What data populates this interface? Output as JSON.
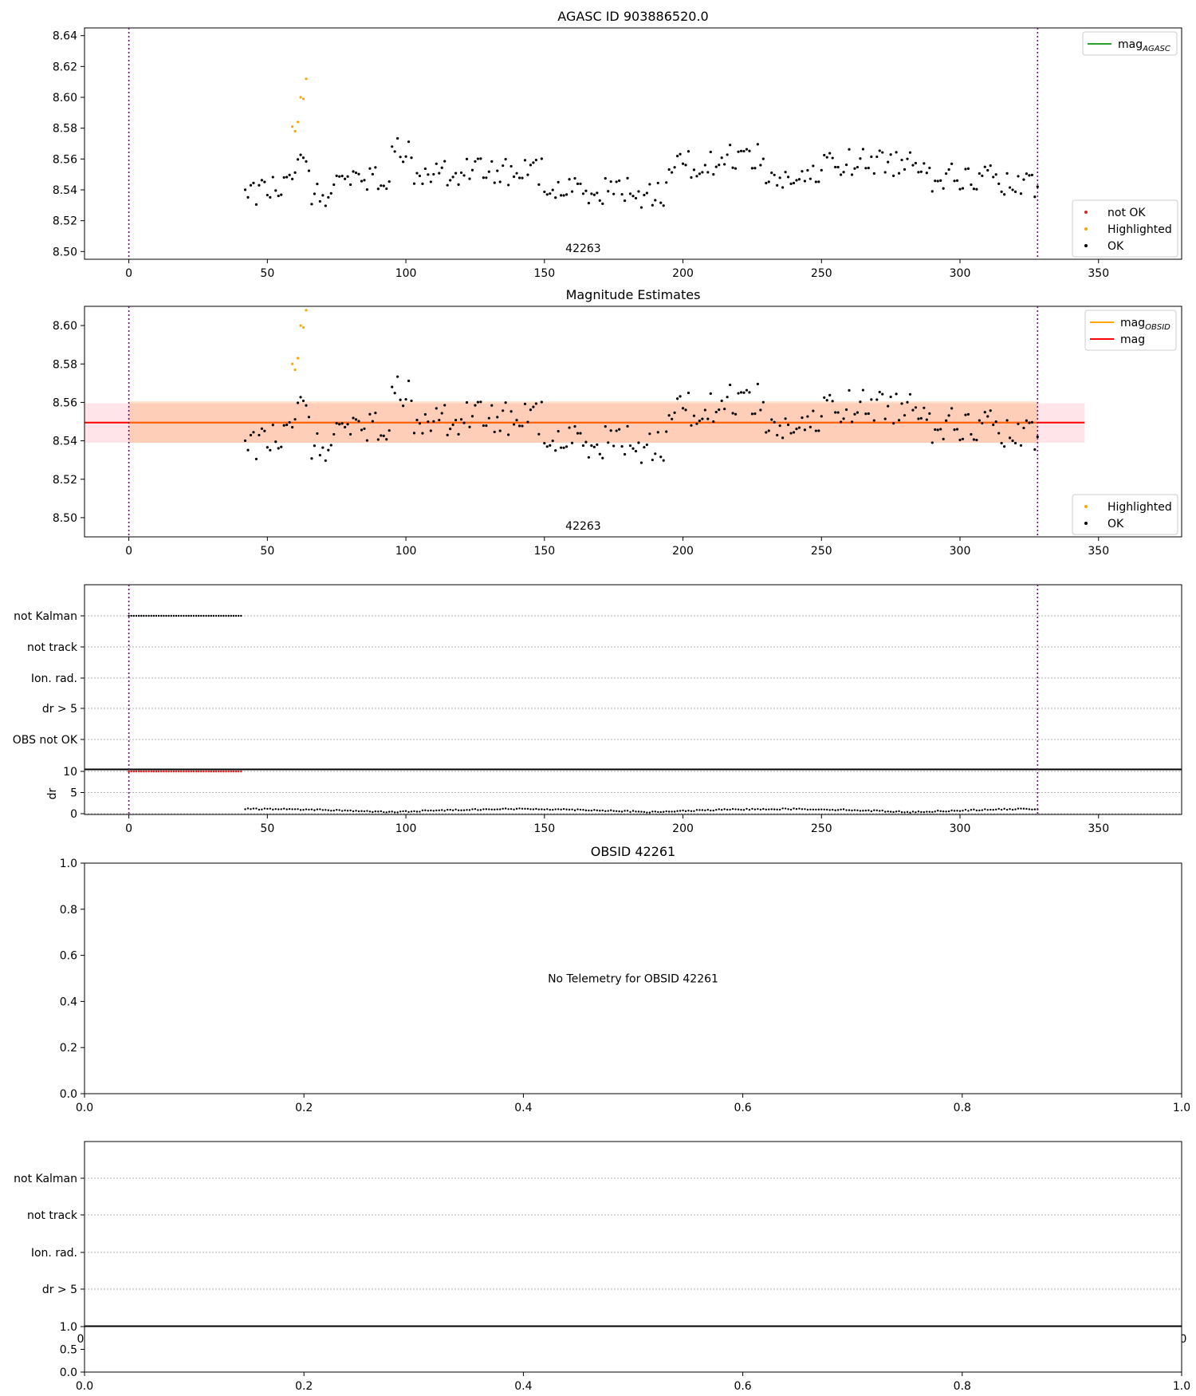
{
  "chart_data": [
    {
      "type": "scatter",
      "title": "AGASC ID 903886520.0",
      "xlim": [
        -16,
        380
      ],
      "ylim": [
        8.495,
        8.645
      ],
      "xticks": [
        "0",
        "50",
        "100",
        "150",
        "200",
        "250",
        "300",
        "350"
      ],
      "yticks": [
        "8.50",
        "8.52",
        "8.54",
        "8.56",
        "8.58",
        "8.60",
        "8.62",
        "8.64"
      ],
      "obsid_label": "42263",
      "vlines": [
        0,
        328
      ],
      "legend_top": [
        {
          "name": "mag",
          "sub": "AGASC",
          "color": "#2ca02c",
          "kind": "line"
        }
      ],
      "legend_bottom": [
        {
          "name": "not OK",
          "color": "#d62728",
          "kind": "dot"
        },
        {
          "name": "Highlighted",
          "color": "#ffa500",
          "kind": "dot"
        },
        {
          "name": "OK",
          "color": "#000000",
          "kind": "dot"
        }
      ],
      "highlighted": {
        "x": [
          59,
          60,
          61,
          62,
          63,
          64
        ],
        "y": [
          8.581,
          8.578,
          8.584,
          8.6,
          8.599,
          8.612
        ]
      }
    },
    {
      "type": "scatter",
      "title": "Magnitude Estimates",
      "xlim": [
        -16,
        380
      ],
      "ylim": [
        8.49,
        8.61
      ],
      "xticks": [
        "0",
        "50",
        "100",
        "150",
        "200",
        "250",
        "300",
        "350"
      ],
      "yticks": [
        "8.50",
        "8.52",
        "8.54",
        "8.56",
        "8.58",
        "8.60"
      ],
      "obsid_label": "42263",
      "vlines": [
        0,
        328
      ],
      "mag_band": {
        "mean": 8.5495,
        "low": 8.539,
        "high": 8.5595,
        "x_range": [
          -16,
          345
        ]
      },
      "obsid_band": {
        "mean": 8.5495,
        "low": 8.539,
        "high": 8.5605,
        "x_range": [
          0,
          328
        ]
      },
      "legend_top": [
        {
          "name": "mag",
          "sub": "OBSID",
          "color": "#ffa500",
          "kind": "line"
        },
        {
          "name": "mag",
          "sub": "",
          "color": "#ff0000",
          "kind": "line"
        }
      ],
      "legend_bottom": [
        {
          "name": "Highlighted",
          "color": "#ffa500",
          "kind": "dot"
        },
        {
          "name": "OK",
          "color": "#000000",
          "kind": "dot"
        }
      ],
      "highlighted": {
        "x": [
          59,
          60,
          61,
          62,
          63,
          64
        ],
        "y": [
          8.58,
          8.577,
          8.583,
          8.6,
          8.599,
          8.608
        ]
      }
    },
    {
      "type": "scatter",
      "title": "",
      "xlim": [
        -16,
        380
      ],
      "xticks": [
        "0",
        "50",
        "100",
        "150",
        "200",
        "250",
        "300",
        "350"
      ],
      "flag_labels": [
        "not Kalman",
        "not track",
        "Ion. rad.",
        "dr > 5",
        "OBS not OK"
      ],
      "flag_points": {
        "label": "not Kalman",
        "x_range": [
          0,
          41
        ]
      },
      "vlines": [
        0,
        328
      ],
      "dr_ylabel": "dr",
      "dr_yticks": [
        "0",
        "5",
        "10"
      ],
      "dr_ylim": [
        0,
        10
      ],
      "dr_red": {
        "x_range": [
          0,
          41
        ],
        "y": 10
      }
    },
    {
      "type": "scatter",
      "title": "OBSID 42261",
      "message": "No Telemetry for OBSID 42261",
      "xticks": [
        "0.0",
        "0.2",
        "0.4",
        "0.6",
        "0.8",
        "1.0"
      ],
      "yticks": [
        "0.0",
        "0.2",
        "0.4",
        "0.6",
        "0.8",
        "1.0"
      ]
    },
    {
      "type": "scatter",
      "title": "",
      "flag_labels": [
        "not Kalman",
        "not track",
        "Ion. rad.",
        "dr > 5"
      ],
      "dr_yticks": [
        "0.0",
        "0.5",
        "1.0"
      ],
      "xticks": [
        "0.0",
        "0.2",
        "0.4",
        "0.6",
        "0.8",
        "1.0"
      ],
      "clipped_ticks": [
        "0",
        "0"
      ]
    }
  ]
}
